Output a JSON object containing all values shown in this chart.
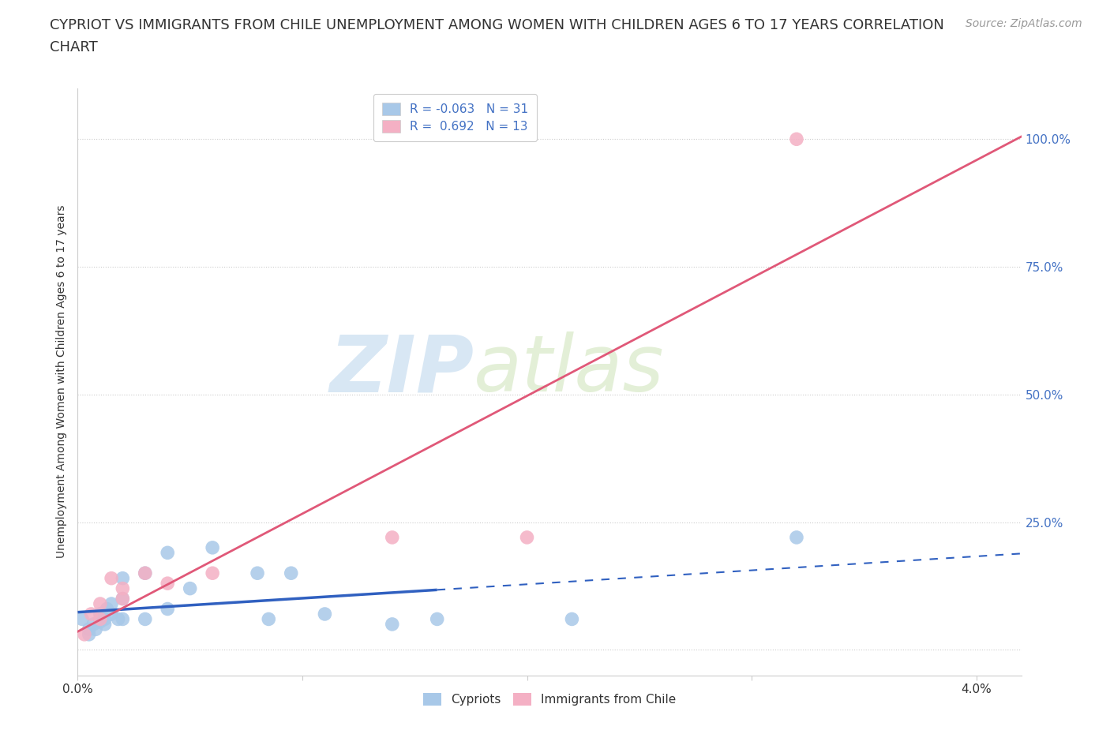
{
  "title_line1": "CYPRIOT VS IMMIGRANTS FROM CHILE UNEMPLOYMENT AMONG WOMEN WITH CHILDREN AGES 6 TO 17 YEARS CORRELATION",
  "title_line2": "CHART",
  "source_text": "Source: ZipAtlas.com",
  "ylabel": "Unemployment Among Women with Children Ages 6 to 17 years",
  "xlim": [
    0.0,
    0.042
  ],
  "ylim": [
    -0.05,
    1.1
  ],
  "xlabel_ticks": [
    0.0,
    0.04
  ],
  "xlabel_tick_labels": [
    "0.0%",
    "4.0%"
  ],
  "ylabel_ticks": [
    0.0,
    0.25,
    0.5,
    0.75,
    1.0
  ],
  "ylabel_tick_labels": [
    "",
    "25.0%",
    "50.0%",
    "75.0%",
    "100.0%"
  ],
  "cypriot_x": [
    0.0002,
    0.0005,
    0.0005,
    0.0007,
    0.0008,
    0.001,
    0.001,
    0.001,
    0.0012,
    0.0012,
    0.0013,
    0.0015,
    0.0015,
    0.0018,
    0.002,
    0.002,
    0.002,
    0.003,
    0.003,
    0.004,
    0.004,
    0.005,
    0.006,
    0.008,
    0.0085,
    0.0095,
    0.011,
    0.014,
    0.016,
    0.022,
    0.032
  ],
  "cypriot_y": [
    0.06,
    0.04,
    0.03,
    0.05,
    0.04,
    0.055,
    0.06,
    0.07,
    0.05,
    0.06,
    0.08,
    0.07,
    0.09,
    0.06,
    0.14,
    0.1,
    0.06,
    0.15,
    0.06,
    0.08,
    0.19,
    0.12,
    0.2,
    0.15,
    0.06,
    0.15,
    0.07,
    0.05,
    0.06,
    0.06,
    0.22
  ],
  "chile_x": [
    0.0003,
    0.0006,
    0.001,
    0.001,
    0.0015,
    0.002,
    0.002,
    0.003,
    0.004,
    0.006,
    0.014,
    0.02,
    0.032
  ],
  "chile_y": [
    0.03,
    0.07,
    0.06,
    0.09,
    0.14,
    0.1,
    0.12,
    0.15,
    0.13,
    0.15,
    0.22,
    0.22,
    1.0
  ],
  "cypriot_color": "#a8c8e8",
  "chile_color": "#f4b0c4",
  "cypriot_line_color": "#3060c0",
  "chile_line_color": "#e05878",
  "cypriot_line_solid_end": 0.016,
  "R_cypriot": -0.063,
  "N_cypriot": 31,
  "R_chile": 0.692,
  "N_chile": 13,
  "watermark_zip": "ZIP",
  "watermark_atlas": "atlas",
  "grid_color": "#cccccc",
  "background_color": "#ffffff",
  "title_fontsize": 13,
  "axis_label_fontsize": 10,
  "tick_fontsize": 11,
  "legend_fontsize": 11,
  "source_fontsize": 10
}
